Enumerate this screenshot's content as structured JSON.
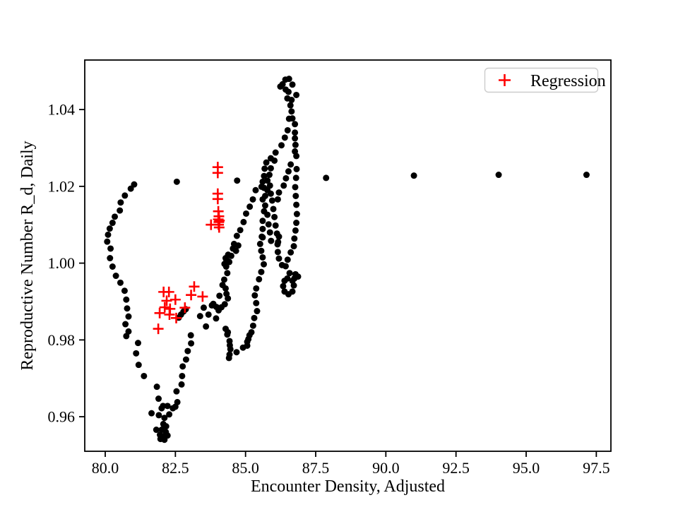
{
  "chart_data": {
    "type": "scatter",
    "title": "",
    "xlabel": "Encounter Density, Adjusted",
    "ylabel": "Reproductive Number R_d, Daily",
    "xlim": [
      79.27,
      98.02
    ],
    "ylim": [
      0.951,
      1.0529
    ],
    "grid": false,
    "xticks": {
      "values": [
        80.0,
        82.5,
        85.0,
        87.5,
        90.0,
        92.5,
        95.0,
        97.5
      ],
      "labels": [
        "80.0",
        "82.5",
        "85.0",
        "87.5",
        "90.0",
        "92.5",
        "95.0",
        "97.5"
      ]
    },
    "yticks": {
      "values": [
        0.96,
        0.98,
        1.0,
        1.02,
        1.04
      ],
      "labels": [
        "0.96",
        "0.98",
        "1.00",
        "1.02",
        "1.04"
      ]
    },
    "legend": {
      "position": "upper right",
      "entries": [
        {
          "label": "Regression",
          "marker": "plus",
          "color": "#ff0000"
        }
      ]
    },
    "series": [
      {
        "name": "encounter-trajectory",
        "marker": "circle",
        "color": "#000000",
        "marker_radius": 4.5,
        "in_legend": false,
        "points": [
          [
            81.03,
            1.0205
          ],
          [
            80.91,
            1.0194
          ],
          [
            80.7,
            1.0176
          ],
          [
            80.55,
            1.0158
          ],
          [
            80.52,
            1.0137
          ],
          [
            80.34,
            1.0121
          ],
          [
            80.26,
            1.0105
          ],
          [
            80.16,
            1.009
          ],
          [
            80.1,
            1.0074
          ],
          [
            80.07,
            1.0056
          ],
          [
            80.19,
            1.0038
          ],
          [
            80.17,
            1.0013
          ],
          [
            80.26,
            0.9991
          ],
          [
            80.38,
            0.9967
          ],
          [
            80.54,
            0.9949
          ],
          [
            80.69,
            0.9928
          ],
          [
            80.75,
            0.9905
          ],
          [
            80.78,
            0.9882
          ],
          [
            80.83,
            0.9861
          ],
          [
            80.72,
            0.9841
          ],
          [
            80.83,
            0.9822
          ],
          [
            80.75,
            0.981
          ],
          [
            81.17,
            0.9792
          ],
          [
            81.1,
            0.9765
          ],
          [
            81.19,
            0.9735
          ],
          [
            81.38,
            0.9706
          ],
          [
            81.84,
            0.9678
          ],
          [
            81.9,
            0.9647
          ],
          [
            82.06,
            0.9628
          ],
          [
            81.65,
            0.9609
          ],
          [
            82.01,
            0.9622
          ],
          [
            81.91,
            0.9604
          ],
          [
            82.28,
            0.9606
          ],
          [
            82.11,
            0.9597
          ],
          [
            82.07,
            0.9581
          ],
          [
            82.17,
            0.9575
          ],
          [
            82.01,
            0.9566
          ],
          [
            81.82,
            0.9566
          ],
          [
            82.16,
            0.956
          ],
          [
            81.95,
            0.9553
          ],
          [
            82.07,
            0.9549
          ],
          [
            81.97,
            0.9542
          ],
          [
            82.11,
            0.954
          ],
          [
            82.22,
            0.9551
          ],
          [
            82.22,
            0.9628
          ],
          [
            82.41,
            0.9622
          ],
          [
            82.5,
            0.9626
          ],
          [
            82.57,
            0.9638
          ],
          [
            82.54,
            0.9666
          ],
          [
            82.72,
            0.9684
          ],
          [
            82.74,
            0.9706
          ],
          [
            82.76,
            0.9731
          ],
          [
            82.88,
            0.9749
          ],
          [
            82.94,
            0.9771
          ],
          [
            83.06,
            0.9791
          ],
          [
            83.05,
            0.9812
          ],
          [
            82.62,
            0.9858
          ],
          [
            82.7,
            0.9866
          ],
          [
            82.79,
            0.9874
          ],
          [
            82.87,
            0.988
          ],
          [
            83.38,
            0.9862
          ],
          [
            83.51,
            0.9884
          ],
          [
            83.68,
            0.9866
          ],
          [
            83.8,
            0.989
          ],
          [
            83.59,
            0.9835
          ],
          [
            83.95,
            0.9856
          ],
          [
            84.04,
            0.9877
          ],
          [
            84.29,
            1.0013
          ],
          [
            84.35,
            1.0006
          ],
          [
            84.31,
            0.9991
          ],
          [
            84.35,
            0.9974
          ],
          [
            84.24,
            0.9957
          ],
          [
            84.18,
            0.9943
          ],
          [
            84.29,
            0.9934
          ],
          [
            84.32,
            0.992
          ],
          [
            84.37,
            0.9908
          ],
          [
            84.26,
            0.9893
          ],
          [
            84.14,
            0.9885
          ],
          [
            83.96,
            0.9886
          ],
          [
            83.85,
            0.9894
          ],
          [
            84.07,
            0.9915
          ],
          [
            84.29,
            0.9829
          ],
          [
            84.37,
            0.982
          ],
          [
            84.35,
            0.9814
          ],
          [
            84.43,
            0.9797
          ],
          [
            84.44,
            0.9786
          ],
          [
            84.46,
            0.9776
          ],
          [
            84.43,
            0.9762
          ],
          [
            84.41,
            0.9753
          ],
          [
            84.68,
            0.9768
          ],
          [
            84.91,
            0.978
          ],
          [
            85.06,
            0.9795
          ],
          [
            85.14,
            0.9812
          ],
          [
            85.58,
            1.0069
          ],
          [
            85.52,
            1.005
          ],
          [
            85.56,
            1.0032
          ],
          [
            85.61,
            1.0015
          ],
          [
            85.65,
            0.9997
          ],
          [
            85.56,
            0.9977
          ],
          [
            85.48,
            0.9958
          ],
          [
            85.38,
            0.9934
          ],
          [
            85.33,
            0.9916
          ],
          [
            85.38,
            0.9896
          ],
          [
            85.41,
            0.9875
          ],
          [
            85.31,
            0.9857
          ],
          [
            85.27,
            0.9837
          ],
          [
            85.21,
            0.982
          ],
          [
            85.1,
            0.9802
          ],
          [
            85.06,
            0.9785
          ],
          [
            85.36,
            1.019
          ],
          [
            85.26,
            1.0166
          ],
          [
            85.15,
            1.0147
          ],
          [
            85.02,
            1.0129
          ],
          [
            84.93,
            1.0107
          ],
          [
            84.81,
            1.0086
          ],
          [
            84.69,
            1.0071
          ],
          [
            84.74,
            1.0046
          ],
          [
            84.59,
            1.005
          ],
          [
            84.66,
            1.0032
          ],
          [
            84.55,
            1.0038
          ],
          [
            84.49,
            1.0019
          ],
          [
            84.38,
            1.0022
          ],
          [
            84.42,
            1.0003
          ],
          [
            84.32,
            1.0007
          ],
          [
            84.25,
            0.9998
          ],
          [
            85.74,
            1.0262
          ],
          [
            86.03,
            1.0267
          ],
          [
            85.68,
            1.0246
          ],
          [
            85.9,
            1.0247
          ],
          [
            85.85,
            1.023
          ],
          [
            85.66,
            1.0227
          ],
          [
            85.78,
            1.0215
          ],
          [
            85.61,
            1.0212
          ],
          [
            85.87,
            1.0202
          ],
          [
            85.66,
            1.0196
          ],
          [
            85.57,
            1.0199
          ],
          [
            85.78,
            1.019
          ],
          [
            85.9,
            1.0181
          ],
          [
            85.7,
            1.0175
          ],
          [
            85.61,
            1.0166
          ],
          [
            85.95,
            1.0163
          ],
          [
            85.7,
            1.015
          ],
          [
            85.99,
            1.0141
          ],
          [
            85.66,
            1.0135
          ],
          [
            85.78,
            1.0126
          ],
          [
            86.03,
            1.012
          ],
          [
            85.61,
            1.011
          ],
          [
            85.82,
            1.0101
          ],
          [
            86.07,
            1.0098
          ],
          [
            85.61,
            1.0089
          ],
          [
            85.87,
            1.008
          ],
          [
            86.12,
            1.0077
          ],
          [
            85.61,
            1.0067
          ],
          [
            85.91,
            1.0058
          ],
          [
            86.16,
            1.0055
          ],
          [
            86.61,
            1.0257
          ],
          [
            86.53,
            1.0239
          ],
          [
            86.44,
            1.0221
          ],
          [
            86.36,
            1.0202
          ],
          [
            86.19,
            1.0184
          ],
          [
            86.15,
            1.0166
          ],
          [
            86.19,
            1.0069
          ],
          [
            86.14,
            1.0049
          ],
          [
            86.15,
            1.0029
          ],
          [
            86.19,
            1.0012
          ],
          [
            86.3,
            0.9995
          ],
          [
            86.57,
            0.9974
          ],
          [
            86.78,
            0.9971
          ],
          [
            86.87,
            0.9965
          ],
          [
            86.74,
            0.996
          ],
          [
            86.49,
            0.996
          ],
          [
            86.39,
            0.9954
          ],
          [
            86.34,
            0.994
          ],
          [
            86.39,
            0.9926
          ],
          [
            86.53,
            0.9919
          ],
          [
            86.67,
            0.9926
          ],
          [
            86.72,
            0.9942
          ],
          [
            86.67,
            0.9954
          ],
          [
            86.43,
            0.9992
          ],
          [
            86.5,
            1.0009
          ],
          [
            86.61,
            1.0028
          ],
          [
            86.72,
            1.0044
          ],
          [
            86.74,
            1.0064
          ],
          [
            86.78,
            1.0085
          ],
          [
            86.81,
            1.0105
          ],
          [
            86.83,
            1.0128
          ],
          [
            86.81,
            1.0152
          ],
          [
            86.79,
            1.0175
          ],
          [
            86.77,
            1.0198
          ],
          [
            86.8,
            1.0222
          ],
          [
            86.82,
            1.0245
          ],
          [
            85.9,
            1.0273
          ],
          [
            86.07,
            1.0288
          ],
          [
            86.28,
            1.0307
          ],
          [
            86.4,
            1.0327
          ],
          [
            86.5,
            1.0346
          ],
          [
            86.55,
            1.0376
          ],
          [
            86.64,
            1.0395
          ],
          [
            86.6,
            1.0411
          ],
          [
            86.64,
            1.0425
          ],
          [
            86.53,
            1.0446
          ],
          [
            86.49,
            1.0429
          ],
          [
            86.43,
            1.0452
          ],
          [
            86.32,
            1.0466
          ],
          [
            86.24,
            1.046
          ],
          [
            86.42,
            1.0478
          ],
          [
            86.55,
            1.048
          ],
          [
            86.67,
            1.0465
          ],
          [
            86.81,
            1.0438
          ],
          [
            86.67,
            1.0377
          ],
          [
            86.76,
            1.0362
          ],
          [
            86.76,
            1.034
          ],
          [
            86.76,
            1.0325
          ],
          [
            86.78,
            1.0308
          ],
          [
            86.76,
            1.0291
          ],
          [
            86.81,
            1.0279
          ],
          [
            82.55,
            1.0212
          ],
          [
            84.7,
            1.0215
          ],
          [
            87.87,
            1.0222
          ],
          [
            91.0,
            1.0228
          ],
          [
            94.02,
            1.023
          ],
          [
            97.15,
            1.023
          ]
        ]
      },
      {
        "name": "Regression",
        "marker": "plus",
        "color": "#ff0000",
        "marker_size": 15,
        "in_legend": true,
        "points": [
          [
            84.01,
            1.025
          ],
          [
            84.01,
            1.0235
          ],
          [
            84.01,
            1.0181
          ],
          [
            84.01,
            1.0167
          ],
          [
            84.03,
            1.0135
          ],
          [
            84.05,
            1.0122
          ],
          [
            84.03,
            1.0114
          ],
          [
            84.07,
            1.0111
          ],
          [
            84.05,
            1.0107
          ],
          [
            84.04,
            1.01
          ],
          [
            84.06,
            1.0093
          ],
          [
            83.77,
            1.01
          ],
          [
            82.08,
            0.9925
          ],
          [
            82.27,
            0.9925
          ],
          [
            83.17,
            0.9939
          ],
          [
            83.06,
            0.9917
          ],
          [
            83.47,
            0.9913
          ],
          [
            82.19,
            0.9902
          ],
          [
            82.5,
            0.9905
          ],
          [
            82.12,
            0.9885
          ],
          [
            82.31,
            0.9881
          ],
          [
            82.84,
            0.9884
          ],
          [
            81.94,
            0.987
          ],
          [
            82.29,
            0.9866
          ],
          [
            82.53,
            0.9857
          ],
          [
            81.89,
            0.9829
          ]
        ]
      }
    ]
  },
  "style": {
    "background": "#ffffff",
    "spine_color": "#000000",
    "tick_color": "#000000",
    "text_color": "#000000",
    "legend_border": "#cccccc",
    "legend_bg": "#ffffff",
    "accent_red": "#ff0000"
  }
}
